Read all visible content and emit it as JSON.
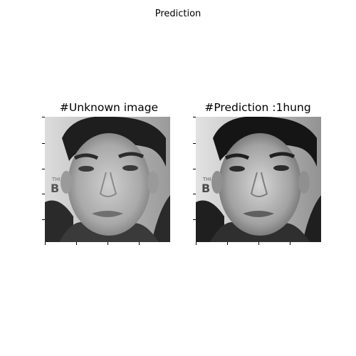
{
  "figure": {
    "suptitle": "Prediction"
  },
  "panels": [
    {
      "title": "#Unknown image",
      "image": "grayscale-face-photo"
    },
    {
      "title": "#Prediction :1hung",
      "image": "grayscale-face-photo-with-contrast"
    }
  ],
  "colors": {
    "background": "#ffffff",
    "text": "#000000"
  }
}
